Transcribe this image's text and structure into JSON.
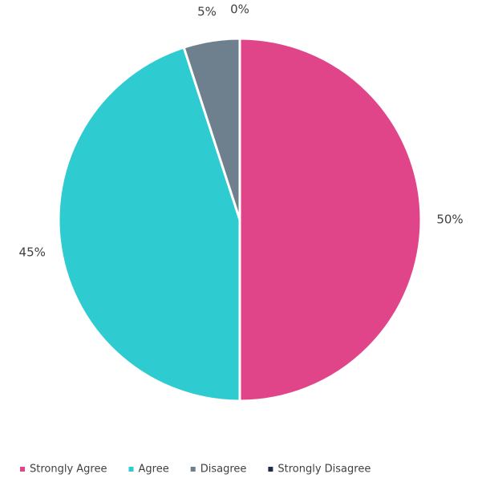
{
  "chart_data": {
    "type": "pie",
    "categories": [
      "Strongly Agree",
      "Agree",
      "Disagree",
      "Strongly Disagree"
    ],
    "values": [
      50,
      45,
      5,
      0
    ],
    "value_labels": [
      "50%",
      "45%",
      "5%",
      "0%"
    ],
    "colors": [
      "#e0458a",
      "#2ecbd1",
      "#6e7f8d",
      "#1f2d4a"
    ],
    "legend": "bottom"
  }
}
